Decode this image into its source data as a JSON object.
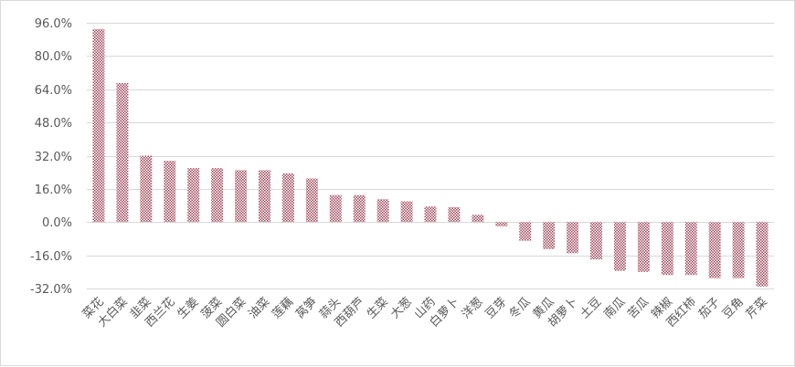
{
  "chart_data": {
    "type": "bar",
    "title": "",
    "xlabel": "",
    "ylabel": "",
    "ylim": [
      -0.32,
      0.96
    ],
    "yticks": [
      0.96,
      0.8,
      0.64,
      0.48,
      0.32,
      0.16,
      0.0,
      -0.16,
      -0.32
    ],
    "ytick_labels": [
      "96.0%",
      "80.0%",
      "64.0%",
      "48.0%",
      "32.0%",
      "16.0%",
      "0.0%",
      "-16.0%",
      "-32.0%"
    ],
    "grid": true,
    "legend": "none",
    "bar_color": "#a0455a",
    "categories": [
      "菜花",
      "大白菜",
      "韭菜",
      "西兰花",
      "生姜",
      "菠菜",
      "圆白菜",
      "油菜",
      "莲藕",
      "莴笋",
      "蒜头",
      "西葫芦",
      "生菜",
      "大葱",
      "山药",
      "白萝卜",
      "洋葱",
      "豆芽",
      "冬瓜",
      "黄瓜",
      "胡萝卜",
      "土豆",
      "南瓜",
      "苦瓜",
      "辣椒",
      "西红柿",
      "茄子",
      "豆角",
      "芹菜"
    ],
    "values": [
      0.93,
      0.67,
      0.32,
      0.295,
      0.26,
      0.26,
      0.25,
      0.25,
      0.235,
      0.21,
      0.13,
      0.13,
      0.11,
      0.1,
      0.075,
      0.072,
      0.035,
      -0.02,
      -0.09,
      -0.13,
      -0.15,
      -0.18,
      -0.235,
      -0.24,
      -0.255,
      -0.255,
      -0.27,
      -0.27,
      -0.31
    ]
  }
}
